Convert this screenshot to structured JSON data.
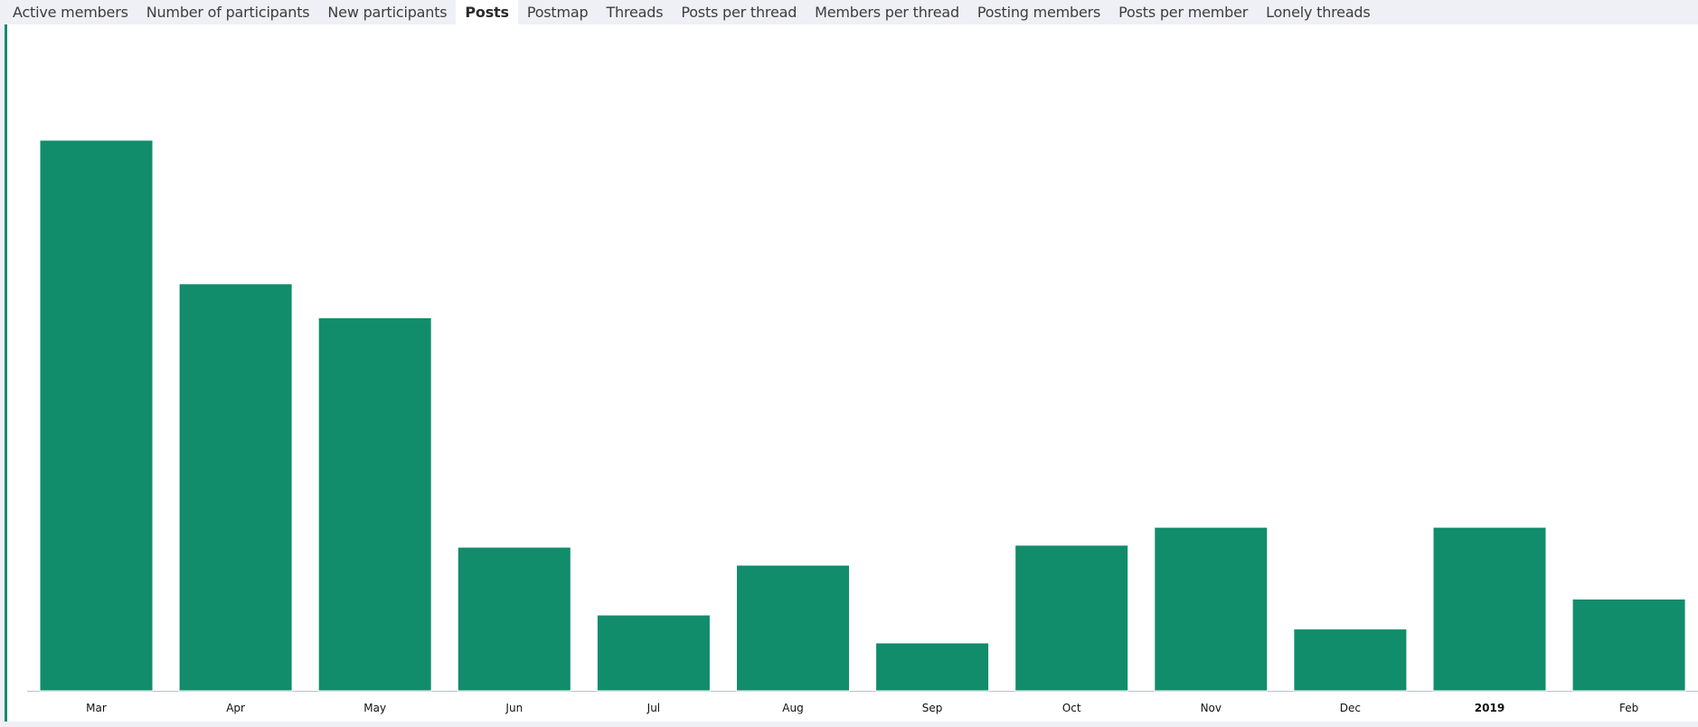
{
  "tabs": [
    {
      "label": "Active members",
      "active": false
    },
    {
      "label": "Number of participants",
      "active": false
    },
    {
      "label": "New participants",
      "active": false
    },
    {
      "label": "Posts",
      "active": true
    },
    {
      "label": "Postmap",
      "active": false
    },
    {
      "label": "Threads",
      "active": false
    },
    {
      "label": "Posts per thread",
      "active": false
    },
    {
      "label": "Members per thread",
      "active": false
    },
    {
      "label": "Posting members",
      "active": false
    },
    {
      "label": "Posts per member",
      "active": false
    },
    {
      "label": "Lonely threads",
      "active": false
    }
  ],
  "chart_data": {
    "type": "bar",
    "title": "",
    "xlabel": "",
    "ylabel": "",
    "categories": [
      "Mar",
      "Apr",
      "May",
      "Jun",
      "Jul",
      "Aug",
      "Sep",
      "Oct",
      "Nov",
      "Dec",
      "2019",
      "Feb"
    ],
    "bold_categories": [
      "2019"
    ],
    "values": [
      552,
      408,
      374,
      144,
      76,
      126,
      48,
      146,
      164,
      62,
      164,
      92
    ],
    "ylim": [
      0,
      600
    ],
    "grid": false,
    "legend": "none",
    "bar_color": "#118d6b",
    "accent_color": "#118d6b"
  }
}
